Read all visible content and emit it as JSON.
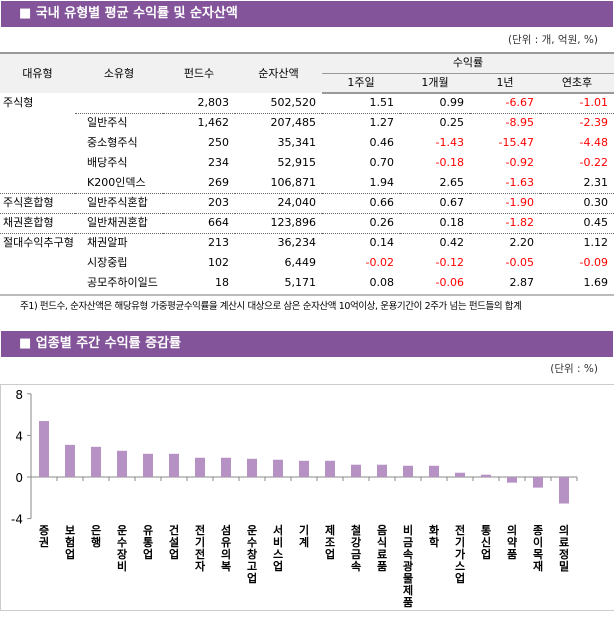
{
  "section1": {
    "title": "■ 국내 유형별 평균 수익률 및 순자산액",
    "unit": "(단위 : 개, 억원, %)",
    "headers": {
      "major": "대유형",
      "minor": "소유형",
      "count": "펀드수",
      "nav": "순자산액",
      "returns": "수익률",
      "w1": "1주일",
      "m1": "1개월",
      "y1": "1년",
      "ytd": "연초후"
    },
    "rows": [
      {
        "major": "주식형",
        "minor": "",
        "count": "2,803",
        "nav": "502,520",
        "w1": "1.51",
        "m1": "0.99",
        "y1": "-6.67",
        "ytd": "-1.01"
      },
      {
        "major": "",
        "minor": "일반주식",
        "count": "1,462",
        "nav": "207,485",
        "w1": "1.27",
        "m1": "0.25",
        "y1": "-8.95",
        "ytd": "-2.39"
      },
      {
        "major": "",
        "minor": "중소형주식",
        "count": "250",
        "nav": "35,341",
        "w1": "0.46",
        "m1": "-1.43",
        "y1": "-15.47",
        "ytd": "-4.48"
      },
      {
        "major": "",
        "minor": "배당주식",
        "count": "234",
        "nav": "52,915",
        "w1": "0.70",
        "m1": "-0.18",
        "y1": "-0.92",
        "ytd": "-0.22"
      },
      {
        "major": "",
        "minor": "K200인덱스",
        "count": "269",
        "nav": "106,871",
        "w1": "1.94",
        "m1": "2.65",
        "y1": "-1.63",
        "ytd": "2.31"
      },
      {
        "major": "주식혼합형",
        "minor": "일반주식혼합",
        "count": "203",
        "nav": "24,040",
        "w1": "0.66",
        "m1": "0.67",
        "y1": "-1.90",
        "ytd": "0.30"
      },
      {
        "major": "채권혼합형",
        "minor": "일반채권혼합",
        "count": "664",
        "nav": "123,896",
        "w1": "0.26",
        "m1": "0.18",
        "y1": "-1.82",
        "ytd": "0.45"
      },
      {
        "major": "절대수익추구형",
        "minor": "채권알파",
        "count": "213",
        "nav": "36,234",
        "w1": "0.14",
        "m1": "0.42",
        "y1": "2.20",
        "ytd": "1.12"
      },
      {
        "major": "",
        "minor": "시장중립",
        "count": "102",
        "nav": "6,449",
        "w1": "-0.02",
        "m1": "-0.12",
        "y1": "-0.05",
        "ytd": "-0.09"
      },
      {
        "major": "",
        "minor": "공모주하이일드",
        "count": "18",
        "nav": "5,171",
        "w1": "0.08",
        "m1": "-0.06",
        "y1": "2.87",
        "ytd": "1.69"
      }
    ],
    "note": "주1) 펀드수, 순자산액은 해당유형 가중평균수익률을 계산시 대상으로 삼은 순자산액 10억이상, 운용기간이 2주가 넘는 펀드들의 합계"
  },
  "section2": {
    "title": "■ 업종별 주간 수익률 증감률",
    "unit": "(단위 : %)"
  },
  "colors": {
    "header": "#83549a",
    "bar": "#b591c4",
    "negative": "#ff0000"
  },
  "chart_data": {
    "type": "bar",
    "ylim": [
      -4,
      8
    ],
    "yticks": [
      "8",
      "4",
      "0",
      "-4"
    ],
    "grid": false,
    "categories": [
      "증 권",
      "보험업",
      "은 행",
      "운수장비",
      "유통업",
      "건설업",
      "전기전자",
      "섬유의복",
      "운수창고업",
      "서비스업",
      "기 계",
      "제조업",
      "철강금속",
      "음식료품",
      "비금속광물제품",
      "화 학",
      "전기가스업",
      "통신업",
      "의약품",
      "종이목재",
      "의료정밀"
    ],
    "values": [
      5.38,
      3.09,
      2.9,
      2.52,
      2.23,
      2.23,
      1.85,
      1.85,
      1.75,
      1.66,
      1.56,
      1.56,
      1.18,
      1.18,
      1.08,
      1.08,
      0.41,
      0.22,
      -0.54,
      -1.02,
      -2.55
    ]
  }
}
